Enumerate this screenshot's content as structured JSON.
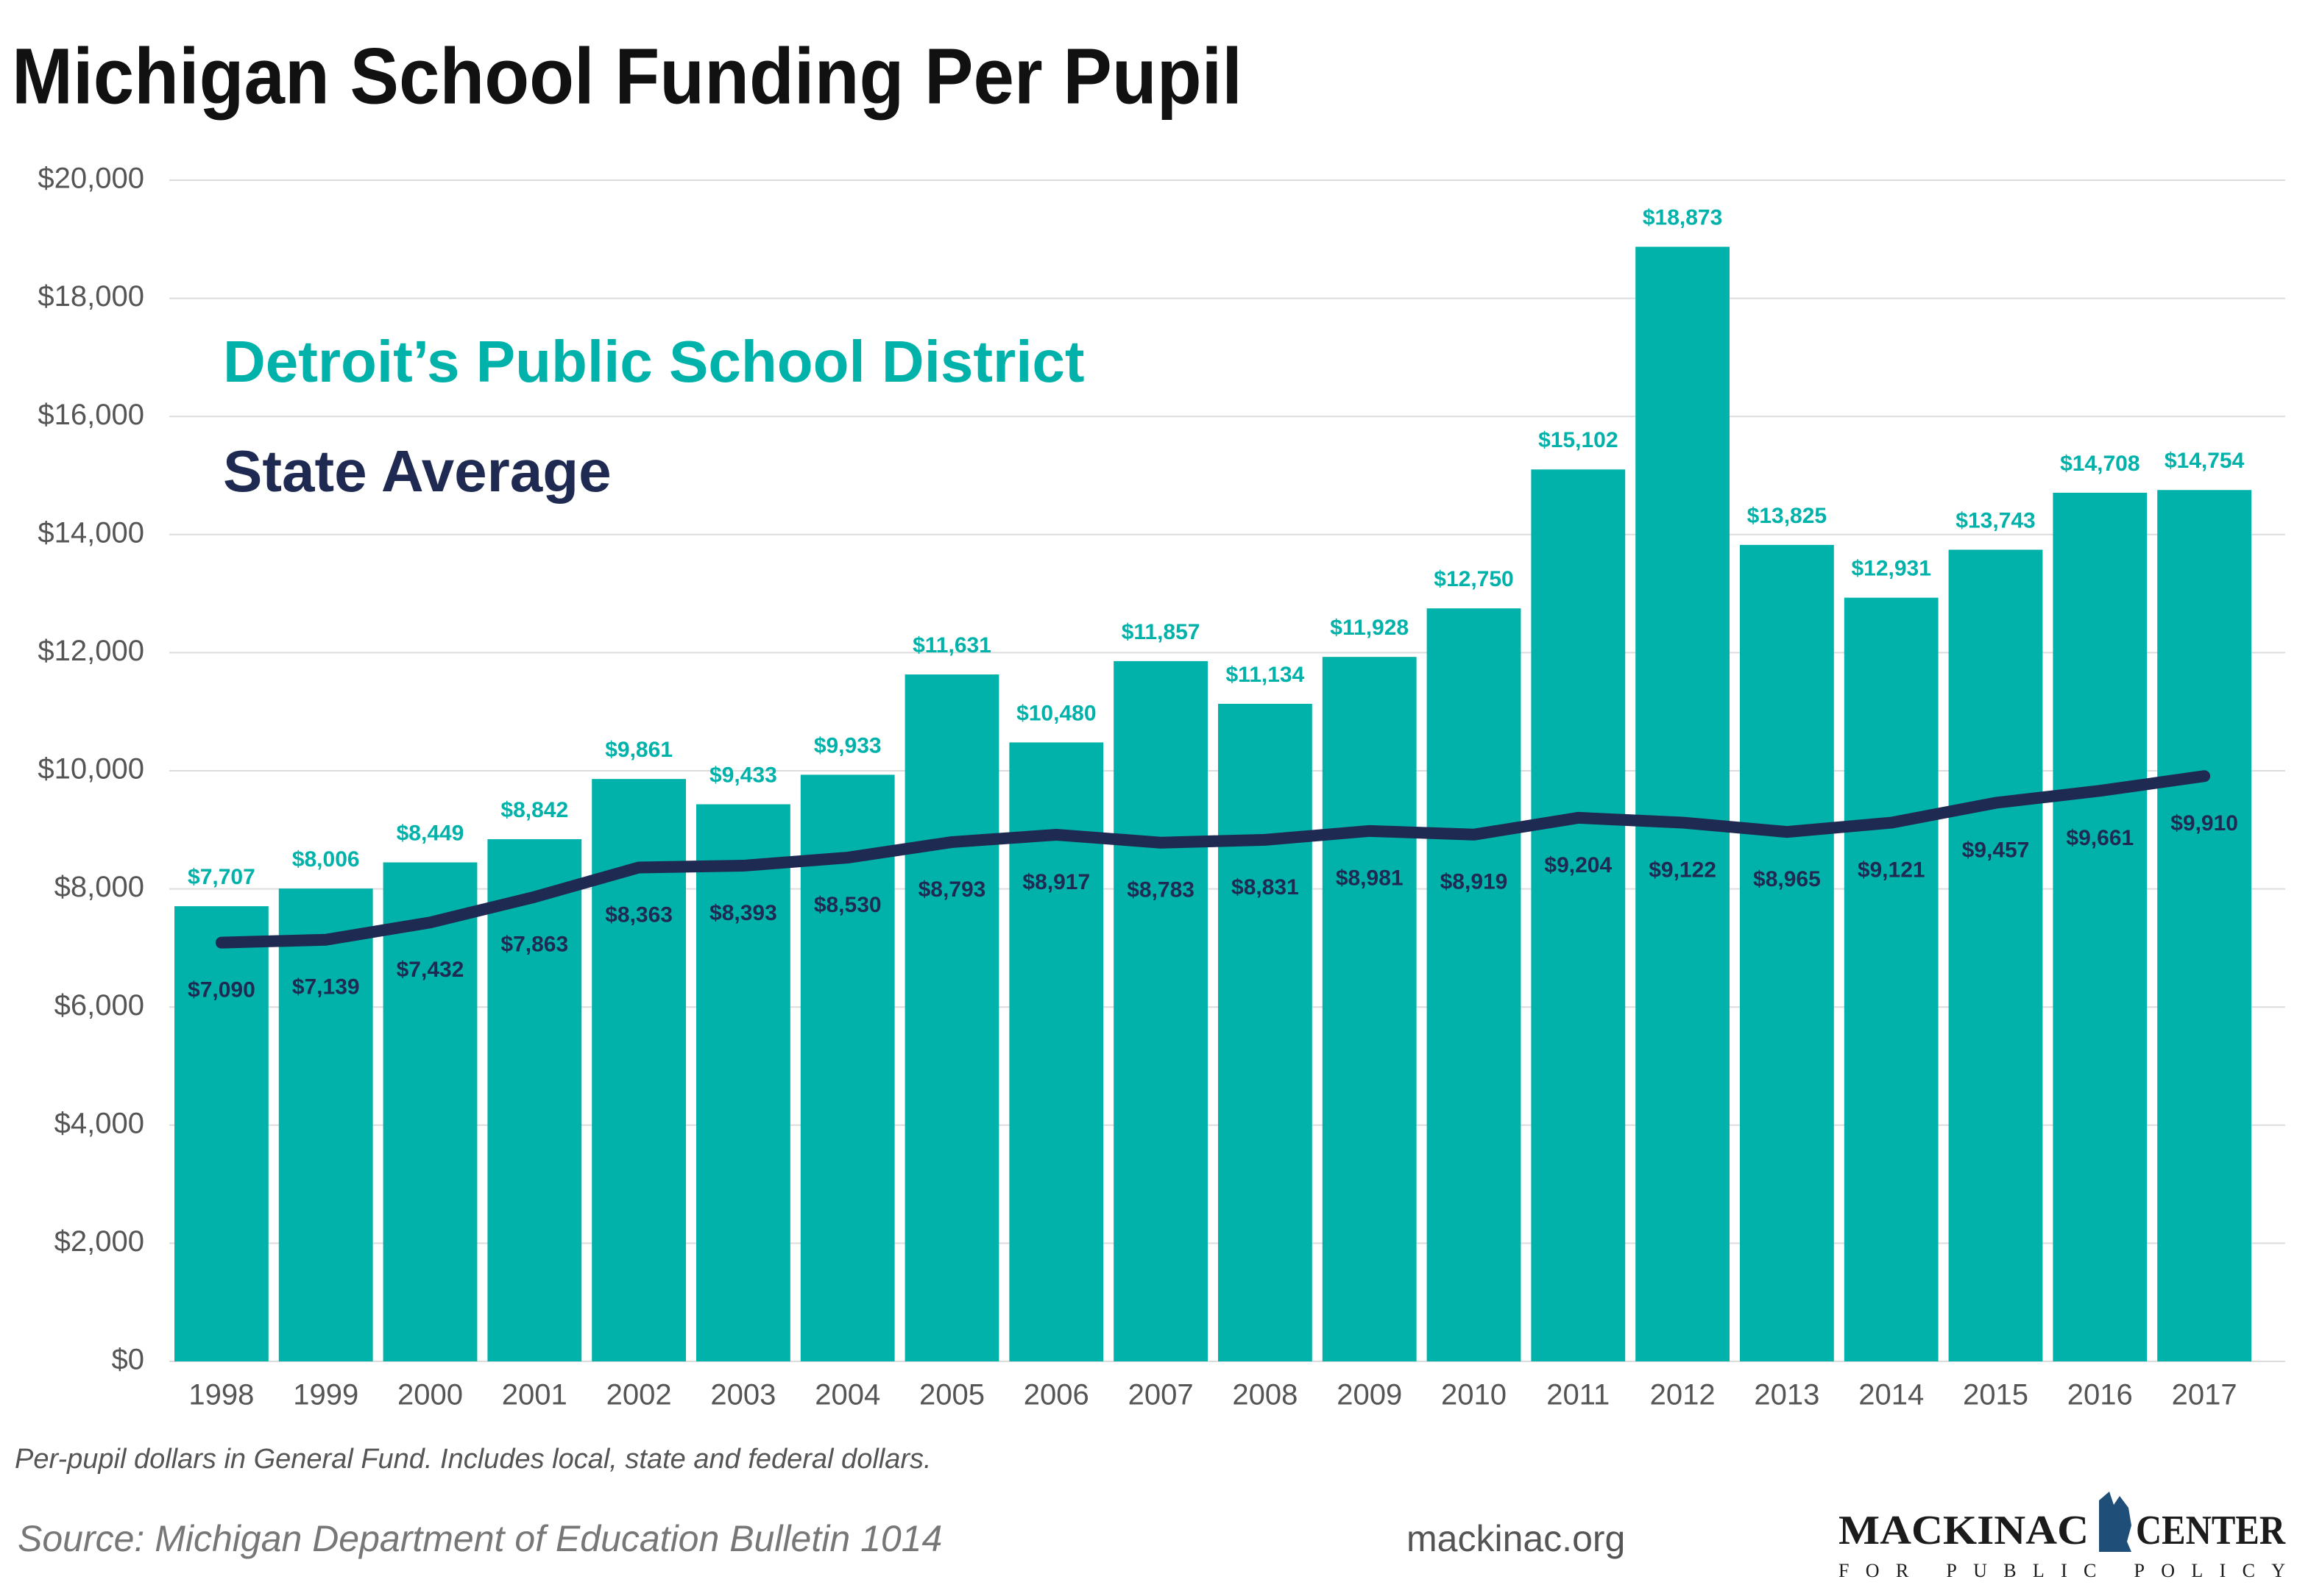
{
  "chart_data": {
    "type": "bar",
    "title": "Michigan School Funding Per Pupil",
    "categories": [
      "1998",
      "1999",
      "2000",
      "2001",
      "2002",
      "2003",
      "2004",
      "2005",
      "2006",
      "2007",
      "2008",
      "2009",
      "2010",
      "2011",
      "2012",
      "2013",
      "2014",
      "2015",
      "2016",
      "2017"
    ],
    "series": [
      {
        "name": "Detroit’s Public School District",
        "type": "bar",
        "color": "#00b2a9",
        "values": [
          7707,
          8006,
          8449,
          8842,
          9861,
          9433,
          9933,
          11631,
          10480,
          11857,
          11134,
          11928,
          12750,
          15102,
          18873,
          13825,
          12931,
          13743,
          14708,
          14754
        ],
        "value_labels": [
          "$7,707",
          "$8,006",
          "$8,449",
          "$8,842",
          "$9,861",
          "$9,433",
          "$9,933",
          "$11,631",
          "$10,480",
          "$11,857",
          "$11,134",
          "$11,928",
          "$12,750",
          "$15,102",
          "$18,873",
          "$13,825",
          "$12,931",
          "$13,743",
          "$14,708",
          "$14,754"
        ]
      },
      {
        "name": "State Average",
        "type": "line",
        "color": "#1f2a52",
        "values": [
          7090,
          7139,
          7432,
          7863,
          8363,
          8393,
          8530,
          8793,
          8917,
          8783,
          8831,
          8981,
          8919,
          9204,
          9122,
          8965,
          9121,
          9457,
          9661,
          9910
        ],
        "value_labels": [
          "$7,090",
          "$7,139",
          "$7,432",
          "$7,863",
          "$8,363",
          "$8,393",
          "$8,530",
          "$8,793",
          "$8,917",
          "$8,783",
          "$8,831",
          "$8,981",
          "$8,919",
          "$9,204",
          "$9,122",
          "$8,965",
          "$9,121",
          "$9,457",
          "$9,661",
          "$9,910"
        ]
      }
    ],
    "ylim": [
      0,
      20000
    ],
    "yticks": [
      {
        "value": 0,
        "label": "$0"
      },
      {
        "value": 2000,
        "label": "$2,000"
      },
      {
        "value": 4000,
        "label": "$4,000"
      },
      {
        "value": 6000,
        "label": "$6,000"
      },
      {
        "value": 8000,
        "label": "$8,000"
      },
      {
        "value": 10000,
        "label": "$10,000"
      },
      {
        "value": 12000,
        "label": "$12,000"
      },
      {
        "value": 14000,
        "label": "$14,000"
      },
      {
        "value": 16000,
        "label": "$16,000"
      },
      {
        "value": 18000,
        "label": "$18,000"
      },
      {
        "value": 20000,
        "label": "$20,000"
      }
    ],
    "grid": true,
    "note": "Per-pupil dollars in General Fund. Includes local, state and federal dollars.",
    "source": "Source: Michigan Department of Education Bulletin 1014",
    "website": "mackinac.org",
    "logo": {
      "left": "MACKINAC",
      "right": "CENTER",
      "tagline": "FOR PUBLIC POLICY"
    }
  }
}
